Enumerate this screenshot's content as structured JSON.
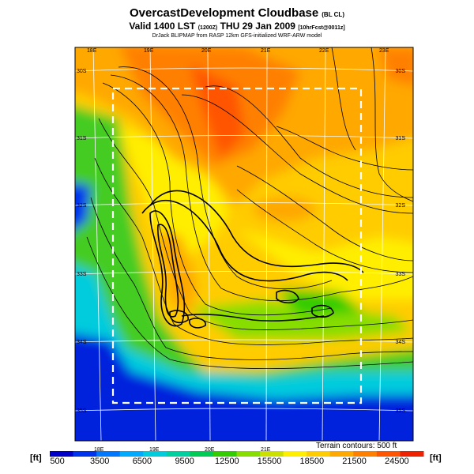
{
  "title": {
    "main": "OvercastDevelopment Cloudbase",
    "main_suffix": "(BL CL)",
    "valid": "Valid 1400 LST",
    "valid_code": "(1200Z)",
    "valid_date": "THU 29 Jan 2009",
    "valid_suffix": "[10hrFcst@0011z]",
    "credit": "DrJack BLIPMAP from RASP 12km GFS-initialized WRF-ARW model"
  },
  "map": {
    "lon_labels_top": [
      "18E",
      "19E",
      "20E",
      "21E",
      "22E",
      "23E"
    ],
    "lon_labels_bottom": [
      "18E",
      "19E",
      "20E",
      "21E"
    ],
    "lat_labels_left": [
      "30S",
      "31S",
      "32S",
      "33S",
      "34S",
      "35S"
    ],
    "lat_labels_right": [
      "30S",
      "31S",
      "32S",
      "33S",
      "34S",
      "35S"
    ],
    "terrain_note": "Terrain contours: 500 ft"
  },
  "colorbar": {
    "unit": "[ft]",
    "ticks": [
      "500",
      "3500",
      "6500",
      "9500",
      "12500",
      "15500",
      "18500",
      "21500",
      "24500"
    ],
    "colors": [
      "#0000c8",
      "#0033ee",
      "#0077ff",
      "#00aaff",
      "#00ccdd",
      "#00d0a0",
      "#00cc55",
      "#33cc00",
      "#88dd00",
      "#cce000",
      "#ffee00",
      "#ffcc00",
      "#ffa800",
      "#ff8000",
      "#ff5500",
      "#ee2200"
    ]
  }
}
